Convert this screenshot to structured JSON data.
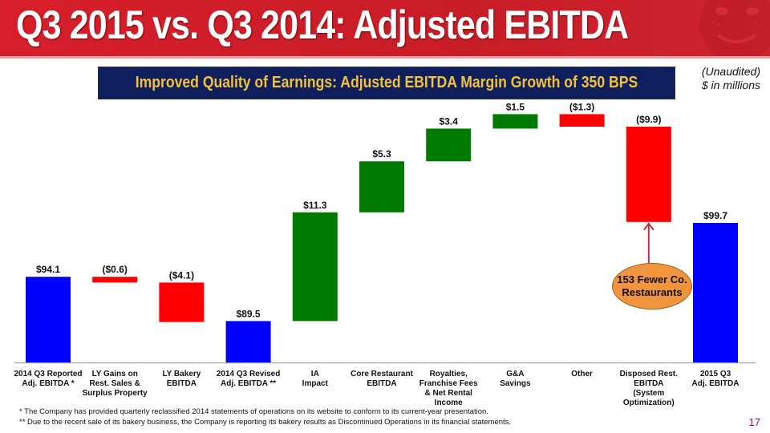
{
  "header": {
    "title": "Q3 2015 vs. Q3 2014: Adjusted EBITDA",
    "subtitle": "Improved Quality of Earnings: Adjusted EBITDA Margin Growth of 350 BPS",
    "note_line1": "(Unaudited)",
    "note_line2": "$ in millions",
    "mascot_icon": "mascot-face-icon"
  },
  "colors": {
    "header_red": "#d71f2b",
    "banner_navy": "#0f1f5e",
    "banner_text": "#f4c23a",
    "total": "#0000ff",
    "increase": "#007a00",
    "decrease": "#ff0000",
    "callout": "#f0953e",
    "arrow": "#c0303a"
  },
  "chart_data": {
    "type": "bar",
    "subtype": "waterfall",
    "title": "Q3 2015 vs. Q3 2014: Adjusted EBITDA",
    "xlabel": "",
    "ylabel": "$ in millions",
    "ylim": [
      85.2,
      100
    ],
    "grid": false,
    "categories": [
      [
        "2014 Q3 Reported",
        "Adj. EBITDA *"
      ],
      [
        "LY Gains on",
        "Rest. Sales &",
        "Surplus Property"
      ],
      [
        "LY Bakery",
        "EBITDA"
      ],
      [
        "2014 Q3 Revised",
        "Adj. EBITDA **"
      ],
      [
        "IA",
        "Impact"
      ],
      [
        "Core Restaurant",
        "EBITDA"
      ],
      [
        "Royalties,",
        "Franchise Fees",
        "& Net Rental",
        "Income"
      ],
      [
        "G&A",
        "Savings"
      ],
      [
        "Other"
      ],
      [
        "Disposed Rest.",
        "EBITDA",
        "(System",
        "Optimization)"
      ],
      [
        "2015 Q3",
        "Adj. EBITDA"
      ]
    ],
    "values": [
      94.1,
      -0.6,
      -4.1,
      89.5,
      11.3,
      5.3,
      3.4,
      1.5,
      -1.3,
      -9.9,
      99.7
    ],
    "kinds": [
      "total",
      "decrease",
      "decrease",
      "total",
      "increase",
      "increase",
      "increase",
      "increase",
      "decrease",
      "decrease",
      "total"
    ],
    "labels": [
      "$94.1",
      "($0.6)",
      "($4.1)",
      "$89.5",
      "$11.3",
      "$5.3",
      "$3.4",
      "$1.5",
      "($1.3)",
      "($9.9)",
      "$99.7"
    ],
    "annotations": [
      {
        "text": "153 Fewer Co. Restaurants",
        "points_to": "Disposed Rest. EBITDA (System Optimization)"
      }
    ]
  },
  "callout": {
    "line1": "153 Fewer Co.",
    "line2": "Restaurants"
  },
  "footnotes": [
    "* The Company has provided quarterly reclassified 2014 statements of operations on its website to conform to its current-year presentation.",
    "**   Due to the recent sale of its bakery business, the Company is reporting its bakery results as Discontinued Operations in its financial statements."
  ],
  "page_number": "17"
}
